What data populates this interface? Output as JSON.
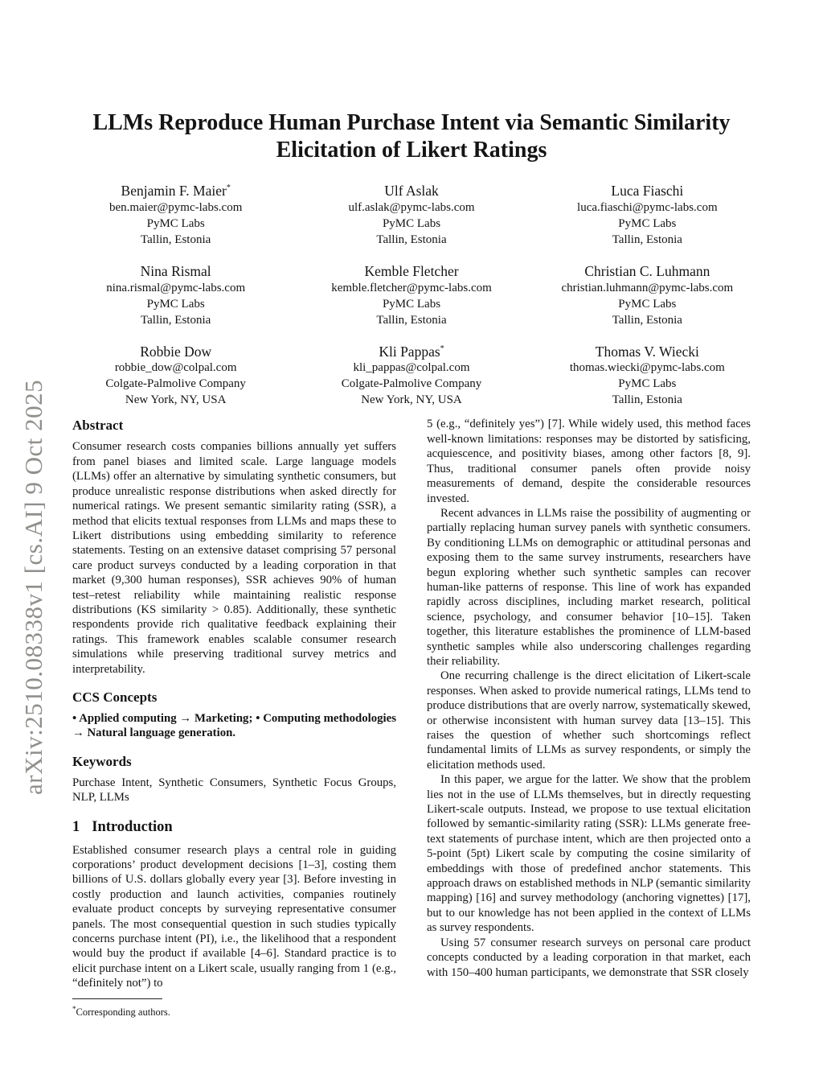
{
  "arxiv_watermark": "arXiv:2510.08338v1  [cs.AI]  9 Oct 2025",
  "title": {
    "line1": "LLMs Reproduce Human Purchase Intent via Semantic Similarity",
    "line2": "Elicitation of Likert Ratings"
  },
  "authors": [
    {
      "name": "Benjamin F. Maier",
      "mark": "*",
      "email": "ben.maier@pymc-labs.com",
      "org": "PyMC Labs",
      "location": "Tallin, Estonia"
    },
    {
      "name": "Ulf Aslak",
      "mark": "",
      "email": "ulf.aslak@pymc-labs.com",
      "org": "PyMC Labs",
      "location": "Tallin, Estonia"
    },
    {
      "name": "Luca Fiaschi",
      "mark": "",
      "email": "luca.fiaschi@pymc-labs.com",
      "org": "PyMC Labs",
      "location": "Tallin, Estonia"
    },
    {
      "name": "Nina Rismal",
      "mark": "",
      "email": "nina.rismal@pymc-labs.com",
      "org": "PyMC Labs",
      "location": "Tallin, Estonia"
    },
    {
      "name": "Kemble Fletcher",
      "mark": "",
      "email": "kemble.fletcher@pymc-labs.com",
      "org": "PyMC Labs",
      "location": "Tallin, Estonia"
    },
    {
      "name": "Christian C. Luhmann",
      "mark": "",
      "email": "christian.luhmann@pymc-labs.com",
      "org": "PyMC Labs",
      "location": "Tallin, Estonia"
    },
    {
      "name": "Robbie Dow",
      "mark": "",
      "email": "robbie_dow@colpal.com",
      "org": "Colgate-Palmolive Company",
      "location": "New York, NY, USA"
    },
    {
      "name": "Kli Pappas",
      "mark": "*",
      "email": "kli_pappas@colpal.com",
      "org": "Colgate-Palmolive Company",
      "location": "New York, NY, USA"
    },
    {
      "name": "Thomas V. Wiecki",
      "mark": "",
      "email": "thomas.wiecki@pymc-labs.com",
      "org": "PyMC Labs",
      "location": "Tallin, Estonia"
    }
  ],
  "abstract": {
    "heading": "Abstract",
    "text": "Consumer research costs companies billions annually yet suffers from panel biases and limited scale. Large language models (LLMs) offer an alternative by simulating synthetic consumers, but produce unrealistic response distributions when asked directly for numerical ratings. We present semantic similarity rating (SSR), a method that elicits textual responses from LLMs and maps these to Likert distributions using embedding similarity to reference statements. Testing on an extensive dataset comprising 57 personal care product surveys conducted by a leading corporation in that market (9,300 human responses), SSR achieves 90% of human test–retest reliability while maintaining realistic response distributions (KS similarity > 0.85). Additionally, these synthetic respondents provide rich qualitative feedback explaining their ratings. This framework enables scalable consumer research simulations while preserving traditional survey metrics and interpretability."
  },
  "ccs": {
    "heading": "CCS Concepts",
    "text": "• Applied computing → Marketing; • Computing methodologies → Natural language generation."
  },
  "keywords": {
    "heading": "Keywords",
    "text": "Purchase Intent, Synthetic Consumers, Synthetic Focus Groups, NLP, LLMs"
  },
  "introduction": {
    "number": "1",
    "heading": "Introduction",
    "p1": "Established consumer research plays a central role in guiding corporations’ product development decisions [1–3], costing them billions of U.S. dollars globally every year [3]. Before investing in costly production and launch activities, companies routinely evaluate product concepts by surveying representative consumer panels. The most consequential question in such studies typically concerns purchase intent (PI), i.e., the likelihood that a respondent would buy the product if available [4–6]. Standard practice is to elicit purchase intent on a Likert scale, usually ranging from 1 (e.g., “definitely not”) to"
  },
  "footnote": {
    "mark": "*",
    "text": "Corresponding authors."
  },
  "right_column": {
    "p1": "5 (e.g., “definitely yes”) [7]. While widely used, this method faces well-known limitations: responses may be distorted by satisficing, acquiescence, and positivity biases, among other factors [8, 9]. Thus, traditional consumer panels often provide noisy measurements of demand, despite the considerable resources invested.",
    "p2": "Recent advances in LLMs raise the possibility of augmenting or partially replacing human survey panels with synthetic consumers. By conditioning LLMs on demographic or attitudinal personas and exposing them to the same survey instruments, researchers have begun exploring whether such synthetic samples can recover human-like patterns of response. This line of work has expanded rapidly across disciplines, including market research, political science, psychology, and consumer behavior [10–15]. Taken together, this literature establishes the prominence of LLM-based synthetic samples while also underscoring challenges regarding their reliability.",
    "p3": "One recurring challenge is the direct elicitation of Likert-scale responses. When asked to provide numerical ratings, LLMs tend to produce distributions that are overly narrow, systematically skewed, or otherwise inconsistent with human survey data [13–15]. This raises the question of whether such shortcomings reflect fundamental limits of LLMs as survey respondents, or simply the elicitation methods used.",
    "p4": "In this paper, we argue for the latter. We show that the problem lies not in the use of LLMs themselves, but in directly requesting Likert-scale outputs. Instead, we propose to use textual elicitation followed by semantic-similarity rating (SSR): LLMs generate free-text statements of purchase intent, which are then projected onto a 5-point (5pt) Likert scale by computing the cosine similarity of embeddings with those of predefined anchor statements. This approach draws on established methods in NLP (semantic similarity mapping) [16] and survey methodology (anchoring vignettes) [17], but to our knowledge has not been applied in the context of LLMs as survey respondents.",
    "p5": "Using 57 consumer research surveys on personal care product concepts conducted by a leading corporation in that market, each with 150–400 human participants, we demonstrate that SSR closely"
  }
}
